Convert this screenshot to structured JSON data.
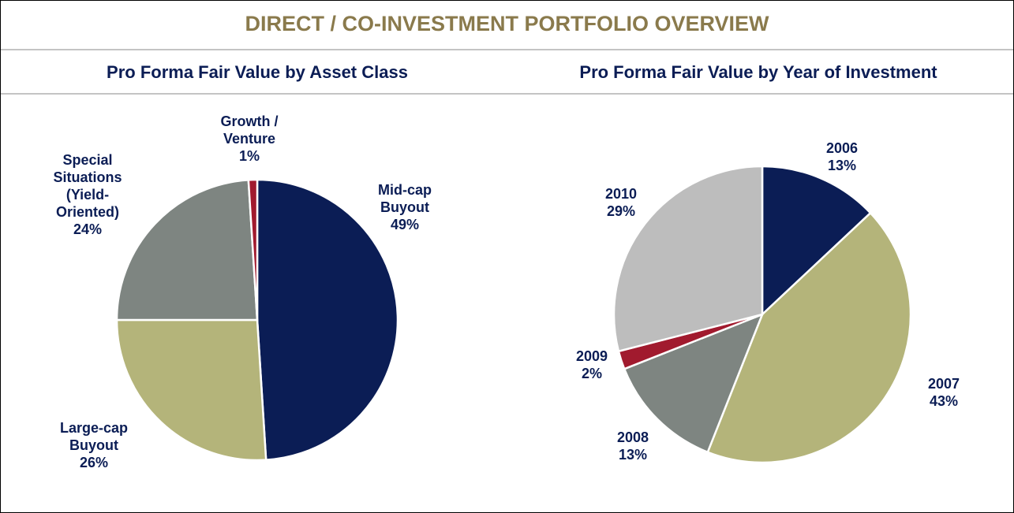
{
  "title": "DIRECT / CO-INVESTMENT PORTFOLIO OVERVIEW",
  "chart_data": [
    {
      "type": "pie",
      "title": "Pro Forma Fair Value by Asset Class",
      "categories": [
        "Mid-cap Buyout",
        "Large-cap Buyout",
        "Special Situations (Yield-Oriented)",
        "Growth / Venture"
      ],
      "values": [
        49,
        26,
        24,
        1
      ],
      "value_labels": [
        "49%",
        "26%",
        "24%",
        "1%"
      ],
      "colors": [
        "#0b1d55",
        "#b4b47a",
        "#7e8581",
        "#a11a2e"
      ]
    },
    {
      "type": "pie",
      "title": "Pro Forma Fair Value by Year of Investment",
      "categories": [
        "2006",
        "2007",
        "2008",
        "2009",
        "2010"
      ],
      "values": [
        13,
        43,
        13,
        2,
        29
      ],
      "value_labels": [
        "13%",
        "43%",
        "13%",
        "2%",
        "29%"
      ],
      "colors": [
        "#0b1d55",
        "#b4b47a",
        "#7e8581",
        "#a11a2e",
        "#bdbdbd"
      ]
    }
  ]
}
